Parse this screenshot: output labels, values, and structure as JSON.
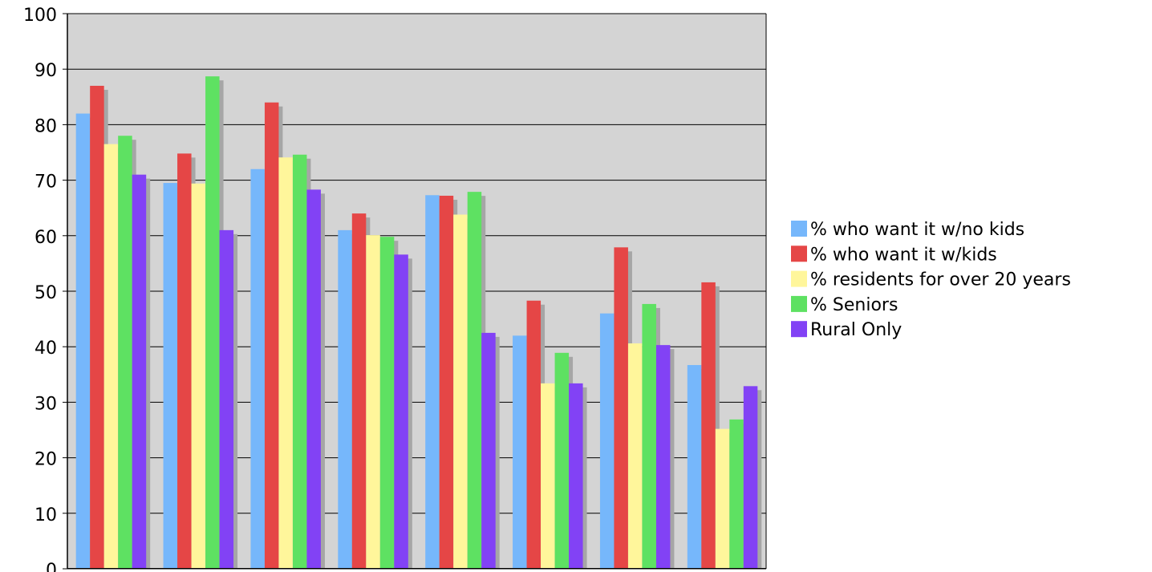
{
  "chart_data": {
    "type": "bar",
    "title": "",
    "xlabel": "",
    "ylabel": "",
    "ylim": [
      0,
      100
    ],
    "y_ticks": [
      0,
      10,
      20,
      30,
      40,
      50,
      60,
      70,
      80,
      90,
      100
    ],
    "grid": true,
    "legend_position": "right",
    "plot_background": "#d4d4d4",
    "categories": [
      "",
      "",
      "",
      "",
      "",
      "",
      "",
      ""
    ],
    "series": [
      {
        "name": "% who want it w/no kids",
        "color": "#76b7fb",
        "values": [
          82,
          69.5,
          72,
          61,
          67.3,
          42,
          46,
          36.7
        ]
      },
      {
        "name": "% who want it w/kids",
        "color": "#e54646",
        "values": [
          87,
          74.8,
          84,
          64,
          67.2,
          48.3,
          57.9,
          51.6
        ]
      },
      {
        "name": "% residents for over 20 years",
        "color": "#fff69b",
        "values": [
          76.5,
          69.4,
          74.1,
          60.1,
          63.8,
          33.4,
          40.6,
          25.2
        ]
      },
      {
        "name": "% Seniors",
        "color": "#5ee162",
        "values": [
          78,
          88.7,
          74.6,
          59.8,
          67.9,
          38.9,
          47.7,
          26.9
        ]
      },
      {
        "name": "Rural Only",
        "color": "#8242f5",
        "values": [
          71,
          61,
          68.3,
          56.6,
          42.5,
          33.4,
          40.3,
          32.9
        ]
      }
    ]
  }
}
